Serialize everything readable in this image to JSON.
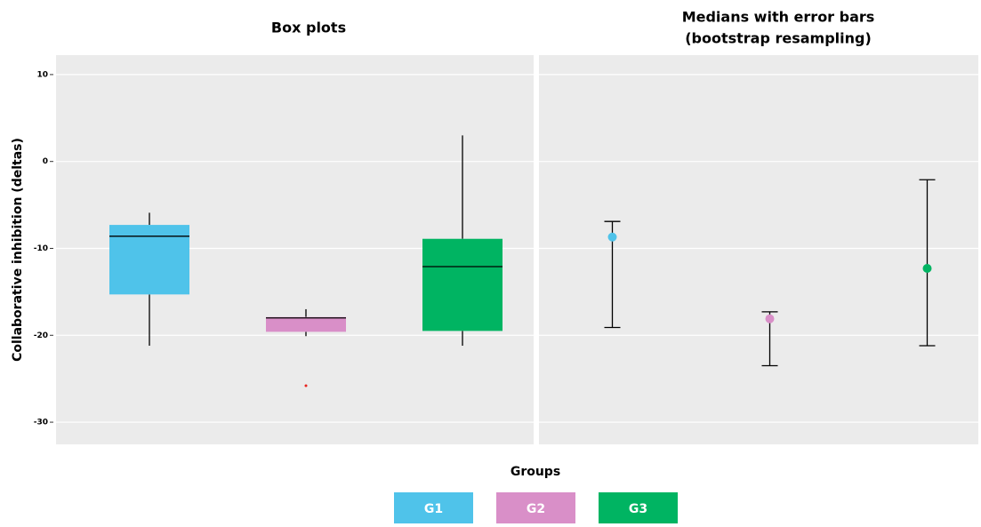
{
  "chart_data": [
    {
      "type": "box",
      "title": "Box plots",
      "y_label": "Collaborative inhibition (deltas)",
      "x_label": "Groups",
      "categories": [
        "G1",
        "G2",
        "G3"
      ],
      "colors": [
        "#4fc3ea",
        "#d98fc8",
        "#00b462"
      ],
      "whisker_high": [
        -5.9,
        -17.0,
        3.0
      ],
      "q3": [
        -7.3,
        -17.9,
        -8.9
      ],
      "median": [
        -8.6,
        -18.0,
        -12.1
      ],
      "q1": [
        -15.3,
        -19.6,
        -19.5
      ],
      "whisker_low": [
        -21.2,
        -20.1,
        -21.2
      ],
      "outliers": [
        [],
        [
          -25.8
        ],
        []
      ],
      "outlier_color": "#e8231e",
      "ylim": [
        -32.55,
        12.24
      ],
      "yticks": [
        -30,
        -20,
        -10,
        0,
        10
      ],
      "grid": true
    },
    {
      "type": "errorbar",
      "title": "Medians with error bars",
      "subtitle": "(bootstrap resampling)",
      "median": [
        -8.7,
        -18.1,
        -12.3
      ],
      "upper": [
        -6.9,
        -17.3,
        -2.1
      ],
      "lower": [
        -19.1,
        -23.5,
        -21.2
      ],
      "ylim": [
        -32.55,
        12.24
      ],
      "yticks": [
        -30,
        -20,
        -10,
        0,
        10
      ],
      "grid": true
    }
  ]
}
